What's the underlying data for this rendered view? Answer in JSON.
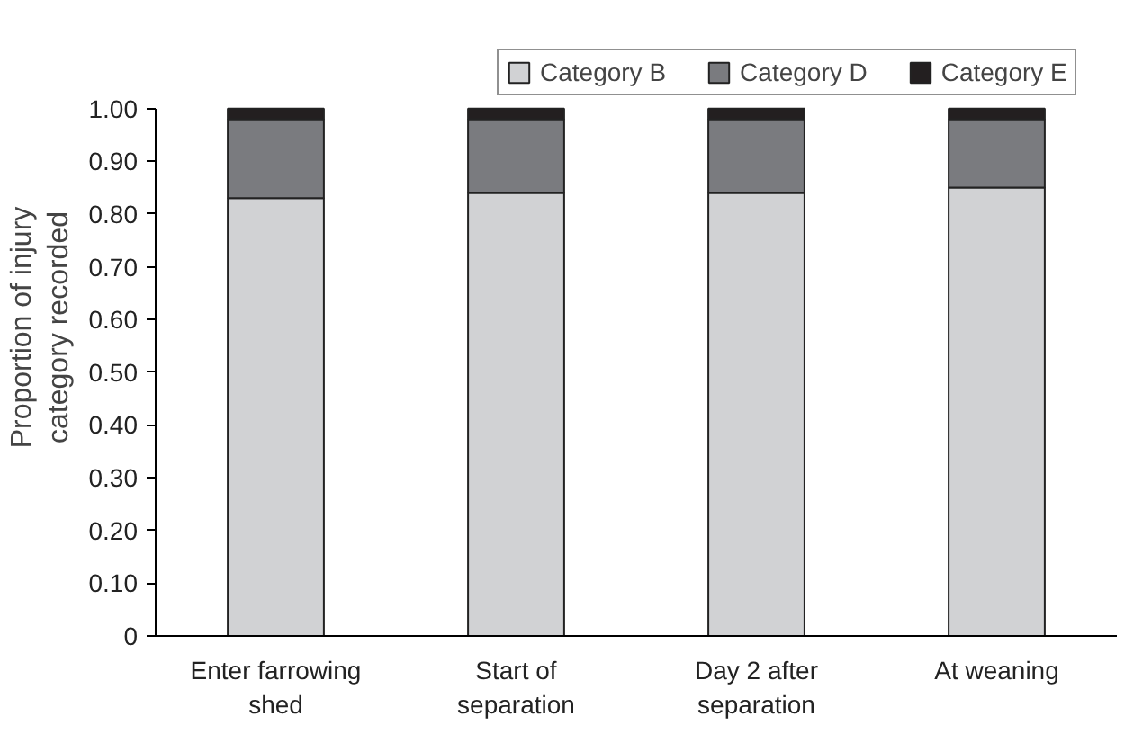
{
  "chart_data": {
    "type": "bar",
    "stacked": true,
    "ylabel": "Proportion of injury\ncategory recorded",
    "categories": [
      "Enter farrowing\nshed",
      "Start of\nseparation",
      "Day 2 after\nseparation",
      "At weaning"
    ],
    "series": [
      {
        "name": "Category B",
        "color": "#d1d2d4",
        "values": [
          0.83,
          0.84,
          0.84,
          0.85
        ]
      },
      {
        "name": "Category D",
        "color": "#7a7b7f",
        "values": [
          0.15,
          0.14,
          0.14,
          0.13
        ]
      },
      {
        "name": "Category E",
        "color": "#231f20",
        "values": [
          0.02,
          0.02,
          0.02,
          0.02
        ]
      }
    ],
    "ylim": [
      0,
      1
    ],
    "yticks": [
      {
        "value": 0,
        "label": "0"
      },
      {
        "value": 0.1,
        "label": "0.10"
      },
      {
        "value": 0.2,
        "label": "0.20"
      },
      {
        "value": 0.3,
        "label": "0.30"
      },
      {
        "value": 0.4,
        "label": "0.40"
      },
      {
        "value": 0.5,
        "label": "0.50"
      },
      {
        "value": 0.6,
        "label": "0.60"
      },
      {
        "value": 0.7,
        "label": "0.70"
      },
      {
        "value": 0.8,
        "label": "0.80"
      },
      {
        "value": 0.9,
        "label": "0.90"
      },
      {
        "value": 1,
        "label": "1.00"
      }
    ],
    "grid": false,
    "legend": "top"
  }
}
